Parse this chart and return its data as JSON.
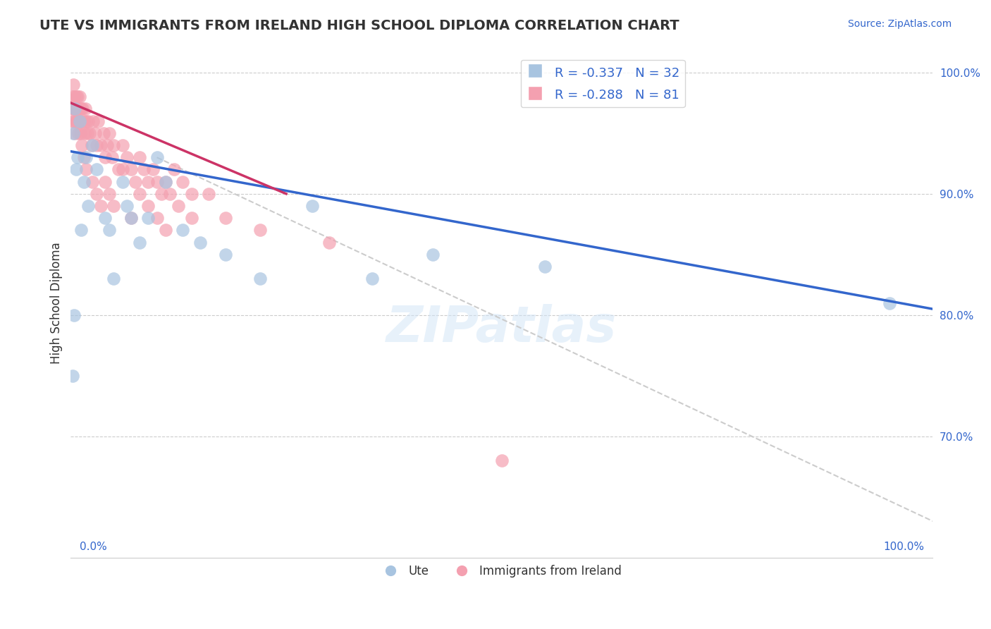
{
  "title": "UTE VS IMMIGRANTS FROM IRELAND HIGH SCHOOL DIPLOMA CORRELATION CHART",
  "source_text": "Source: ZipAtlas.com",
  "ylabel": "High School Diploma",
  "watermark": "ZIPatlas",
  "xlim": [
    0.0,
    1.0
  ],
  "ylim": [
    0.6,
    1.02
  ],
  "yticks": [
    0.7,
    0.8,
    0.9,
    1.0
  ],
  "ytick_labels": [
    "70.0%",
    "80.0%",
    "90.0%",
    "100.0%"
  ],
  "legend_blue_r": "R = -0.337",
  "legend_blue_n": "N = 32",
  "legend_pink_r": "R = -0.288",
  "legend_pink_n": "N = 81",
  "blue_color": "#a8c4e0",
  "pink_color": "#f4a0b0",
  "blue_line_color": "#3366cc",
  "pink_line_color": "#cc3366",
  "diag_line_color": "#cccccc",
  "ute_scatter_x": [
    0.002,
    0.003,
    0.004,
    0.005,
    0.006,
    0.008,
    0.01,
    0.012,
    0.015,
    0.018,
    0.02,
    0.025,
    0.03,
    0.04,
    0.045,
    0.05,
    0.06,
    0.065,
    0.07,
    0.08,
    0.09,
    0.1,
    0.11,
    0.13,
    0.15,
    0.18,
    0.22,
    0.28,
    0.35,
    0.42,
    0.55,
    0.95
  ],
  "ute_scatter_y": [
    0.75,
    0.95,
    0.8,
    0.97,
    0.92,
    0.93,
    0.96,
    0.87,
    0.91,
    0.93,
    0.89,
    0.94,
    0.92,
    0.88,
    0.87,
    0.83,
    0.91,
    0.89,
    0.88,
    0.86,
    0.88,
    0.93,
    0.91,
    0.87,
    0.86,
    0.85,
    0.83,
    0.89,
    0.83,
    0.85,
    0.84,
    0.81
  ],
  "ireland_scatter_x": [
    0.001,
    0.002,
    0.002,
    0.003,
    0.003,
    0.004,
    0.004,
    0.005,
    0.005,
    0.006,
    0.006,
    0.007,
    0.007,
    0.008,
    0.008,
    0.009,
    0.009,
    0.01,
    0.01,
    0.011,
    0.011,
    0.012,
    0.012,
    0.013,
    0.014,
    0.015,
    0.016,
    0.017,
    0.018,
    0.019,
    0.02,
    0.022,
    0.024,
    0.026,
    0.028,
    0.03,
    0.032,
    0.035,
    0.038,
    0.04,
    0.042,
    0.045,
    0.048,
    0.05,
    0.055,
    0.06,
    0.065,
    0.07,
    0.075,
    0.08,
    0.085,
    0.09,
    0.095,
    0.1,
    0.105,
    0.11,
    0.115,
    0.12,
    0.13,
    0.14,
    0.015,
    0.018,
    0.025,
    0.03,
    0.035,
    0.04,
    0.045,
    0.05,
    0.06,
    0.07,
    0.08,
    0.09,
    0.1,
    0.11,
    0.125,
    0.14,
    0.16,
    0.18,
    0.22,
    0.3,
    0.5
  ],
  "ireland_scatter_y": [
    0.97,
    0.96,
    0.98,
    0.97,
    0.99,
    0.96,
    0.98,
    0.95,
    0.97,
    0.96,
    0.98,
    0.97,
    0.96,
    0.98,
    0.97,
    0.95,
    0.96,
    0.97,
    0.98,
    0.96,
    0.95,
    0.97,
    0.96,
    0.94,
    0.97,
    0.96,
    0.95,
    0.97,
    0.96,
    0.95,
    0.96,
    0.95,
    0.94,
    0.96,
    0.95,
    0.94,
    0.96,
    0.94,
    0.95,
    0.93,
    0.94,
    0.95,
    0.93,
    0.94,
    0.92,
    0.94,
    0.93,
    0.92,
    0.91,
    0.93,
    0.92,
    0.91,
    0.92,
    0.91,
    0.9,
    0.91,
    0.9,
    0.92,
    0.91,
    0.9,
    0.93,
    0.92,
    0.91,
    0.9,
    0.89,
    0.91,
    0.9,
    0.89,
    0.92,
    0.88,
    0.9,
    0.89,
    0.88,
    0.87,
    0.89,
    0.88,
    0.9,
    0.88,
    0.87,
    0.86,
    0.68
  ],
  "blue_trend_x": [
    0.0,
    1.0
  ],
  "blue_trend_y": [
    0.935,
    0.805
  ],
  "pink_trend_x": [
    0.0,
    0.25
  ],
  "pink_trend_y": [
    0.975,
    0.9
  ],
  "diag_trend_x": [
    0.1,
    1.0
  ],
  "diag_trend_y": [
    0.93,
    0.63
  ]
}
